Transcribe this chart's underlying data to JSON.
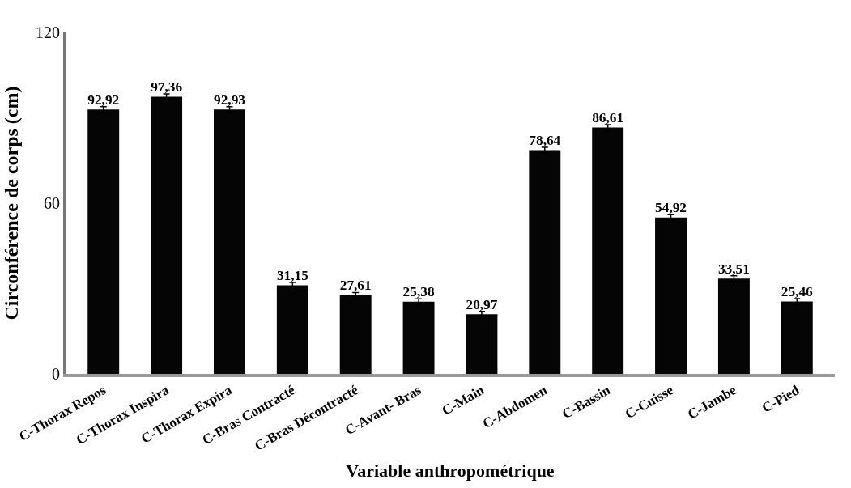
{
  "chart_data": {
    "type": "bar",
    "xlabel": "Variable anthropométrique",
    "ylabel": "Circonférence de corps (cm)",
    "categories": [
      "C-Thorax Repos",
      "C-Thorax Inspira",
      "C-Thorax Expira",
      "C-Bras Contracté",
      "C-Bras Décontracté",
      "C-Avant- Bras",
      "C-Main",
      "C-Abdomen",
      "C-Bassin",
      "C-Cuisse",
      "C-Jambe",
      "C-Pied"
    ],
    "values": [
      92.92,
      97.36,
      92.93,
      31.15,
      27.61,
      25.38,
      20.97,
      78.64,
      86.61,
      54.92,
      33.51,
      25.46
    ],
    "value_labels": [
      "92,92",
      "97,36",
      "92,93",
      "31,15",
      "27,61",
      "25,38",
      "20,97",
      "78,64",
      "86,61",
      "54,92",
      "33,51",
      "25,46"
    ],
    "errors": [
      1,
      1,
      1,
      1,
      1,
      1,
      1,
      1,
      1,
      1,
      1,
      1
    ],
    "color": "#050505",
    "ylim": [
      0,
      120
    ],
    "yticks": [
      0,
      60,
      120
    ]
  }
}
